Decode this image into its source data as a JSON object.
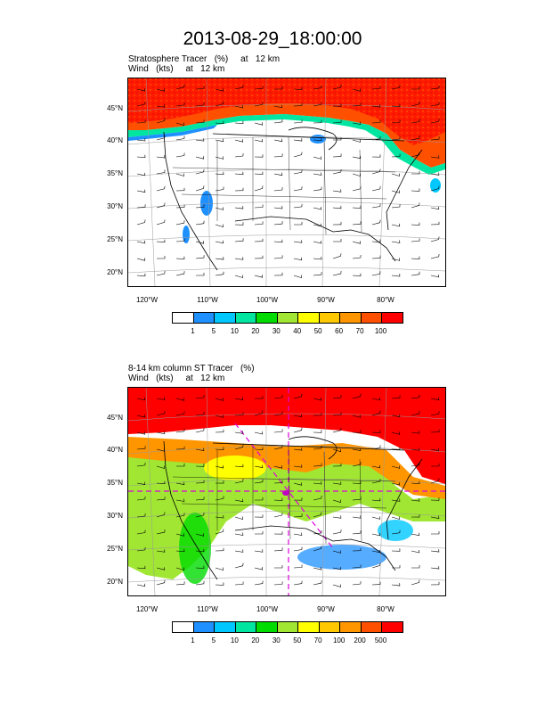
{
  "title": "2013-08-29_18:00:00",
  "panels": [
    {
      "id": "top",
      "title_line1": "Stratosphere Tracer   (%)     at   12 km",
      "title_line2": "Wind   (kts)     at   12 km",
      "lat_labels": [
        "45°N",
        "40°N",
        "35°N",
        "30°N",
        "25°N",
        "20°N"
      ],
      "lon_labels": [
        "120°W",
        "110°W",
        "100°W",
        "90°W",
        "80°W"
      ],
      "colorbar_labels": [
        "1",
        "5",
        "10",
        "20",
        "30",
        "40",
        "50",
        "60",
        "70",
        "100"
      ]
    },
    {
      "id": "bottom",
      "title_line1": "8-14 km column ST Tracer   (%)",
      "title_line2": "Wind   (kts)     at   12 km",
      "lat_labels": [
        "45°N",
        "40°N",
        "35°N",
        "30°N",
        "25°N",
        "20°N"
      ],
      "lon_labels": [
        "120°W",
        "110°W",
        "100°W",
        "90°W",
        "80°W"
      ],
      "colorbar_labels": [
        "1",
        "5",
        "10",
        "20",
        "30",
        "50",
        "70",
        "100",
        "200",
        "500"
      ]
    }
  ],
  "colorbar_colors": [
    "#ffffff",
    "#1e90ff",
    "#00c8ff",
    "#00e6a0",
    "#00dc00",
    "#a0e632",
    "#ffff00",
    "#ffc800",
    "#ff9600",
    "#ff5000",
    "#ff0000"
  ]
}
